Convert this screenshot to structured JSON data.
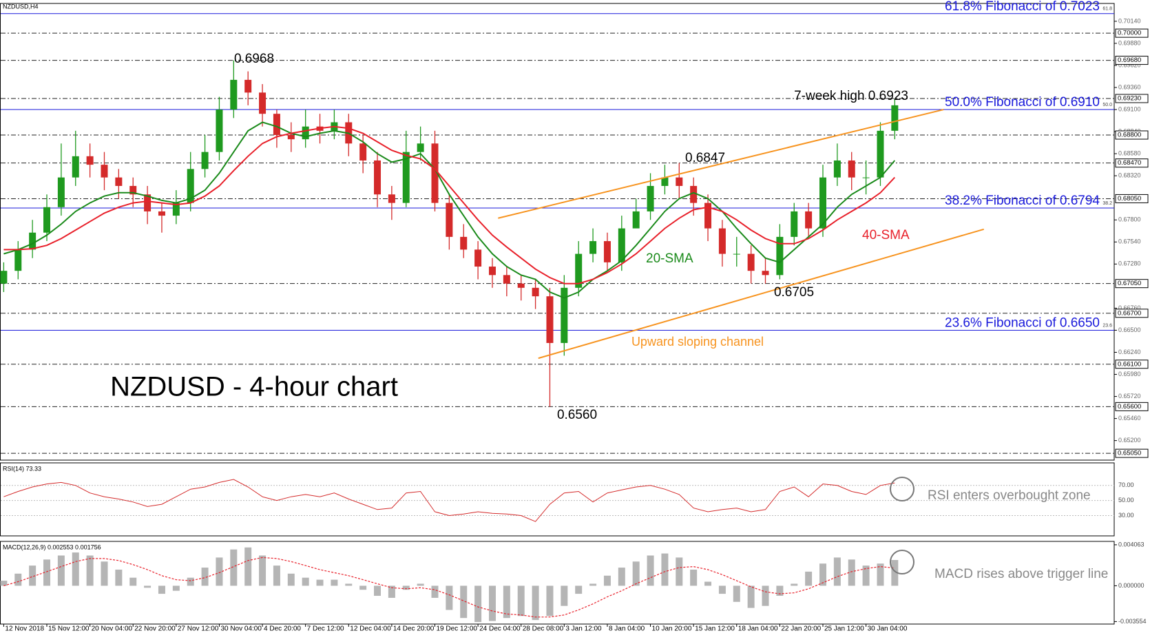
{
  "chart_data": {
    "type": "candlestick",
    "title": "NZDUSD - 4-hour chart",
    "symbol": "NZDUSD,H4",
    "categories": [
      "12 Nov 2018",
      null,
      null,
      "15 Nov 12:00",
      null,
      null,
      "20 Nov 04:00",
      null,
      null,
      "22 Nov 20:00",
      null,
      null,
      "27 Nov 12:00",
      null,
      null,
      "30 Nov 04:00",
      null,
      null,
      "4 Dec 20:00",
      null,
      null,
      "7 Dec 12:00",
      null,
      null,
      "12 Dec 04:00",
      null,
      null,
      "14 Dec 20:00",
      null,
      null,
      "19 Dec 12:00",
      null,
      null,
      "24 Dec 04:00",
      null,
      null,
      "28 Dec 08:00",
      null,
      null,
      "3 Jan 12:00",
      null,
      null,
      "8 Jan 04:00",
      null,
      null,
      "10 Jan 20:00",
      null,
      null,
      "15 Jan 12:00",
      null,
      null,
      "18 Jan 04:00",
      null,
      null,
      "22 Jan 20:00",
      null,
      null,
      "25 Jan 12:00",
      null,
      null,
      "30 Jan 04:00",
      null,
      null
    ],
    "open": [
      0.6705,
      0.672,
      0.6745,
      0.6765,
      0.6795,
      0.683,
      0.6855,
      0.6845,
      0.683,
      0.682,
      0.681,
      0.679,
      0.6785,
      0.68,
      0.684,
      0.686,
      0.691,
      0.6945,
      0.693,
      0.6905,
      0.688,
      0.6875,
      0.689,
      0.6885,
      0.6895,
      0.687,
      0.685,
      0.681,
      0.68,
      0.686,
      0.687,
      0.68,
      0.676,
      0.6745,
      0.6725,
      0.6715,
      0.6705,
      0.67,
      0.669,
      0.6635,
      0.67,
      0.674,
      0.6755,
      0.673,
      0.677,
      0.679,
      0.682,
      0.683,
      0.682,
      0.68,
      0.677,
      0.674,
      0.674,
      0.672,
      0.6715,
      0.676,
      0.679,
      0.677,
      0.683,
      0.685,
      0.683,
      0.683,
      0.6885
    ],
    "high": [
      0.673,
      0.6755,
      0.678,
      0.681,
      0.687,
      0.6885,
      0.687,
      0.686,
      0.684,
      0.683,
      0.682,
      0.68,
      0.6815,
      0.686,
      0.688,
      0.6925,
      0.6968,
      0.6955,
      0.694,
      0.691,
      0.6895,
      0.691,
      0.6905,
      0.691,
      0.6905,
      0.688,
      0.686,
      0.682,
      0.6885,
      0.689,
      0.6885,
      0.681,
      0.6775,
      0.6755,
      0.6735,
      0.6725,
      0.6715,
      0.671,
      0.67,
      0.6715,
      0.6755,
      0.677,
      0.6765,
      0.6785,
      0.6805,
      0.6835,
      0.6845,
      0.6847,
      0.683,
      0.681,
      0.678,
      0.676,
      0.675,
      0.6735,
      0.6775,
      0.68,
      0.68,
      0.6845,
      0.687,
      0.686,
      0.685,
      0.6895,
      0.6923
    ],
    "low": [
      0.6695,
      0.671,
      0.6735,
      0.6755,
      0.6785,
      0.682,
      0.683,
      0.6815,
      0.6805,
      0.6795,
      0.6775,
      0.6765,
      0.6775,
      0.679,
      0.683,
      0.685,
      0.69,
      0.6915,
      0.689,
      0.6865,
      0.686,
      0.6865,
      0.687,
      0.6875,
      0.6855,
      0.6835,
      0.6795,
      0.678,
      0.6795,
      0.685,
      0.679,
      0.6745,
      0.6735,
      0.671,
      0.67,
      0.669,
      0.6685,
      0.6675,
      0.656,
      0.662,
      0.669,
      0.673,
      0.672,
      0.672,
      0.6775,
      0.678,
      0.681,
      0.6805,
      0.6785,
      0.6755,
      0.6725,
      0.6725,
      0.6705,
      0.6705,
      0.671,
      0.675,
      0.676,
      0.676,
      0.682,
      0.6815,
      0.681,
      0.682,
      0.6875
    ],
    "close": [
      0.672,
      0.6745,
      0.6765,
      0.6795,
      0.683,
      0.6855,
      0.6845,
      0.683,
      0.682,
      0.681,
      0.679,
      0.6785,
      0.68,
      0.684,
      0.686,
      0.691,
      0.6945,
      0.693,
      0.6905,
      0.688,
      0.6875,
      0.689,
      0.6885,
      0.6895,
      0.687,
      0.685,
      0.681,
      0.68,
      0.686,
      0.687,
      0.68,
      0.676,
      0.6745,
      0.6725,
      0.6715,
      0.6705,
      0.67,
      0.669,
      0.6635,
      0.67,
      0.674,
      0.6755,
      0.673,
      0.677,
      0.679,
      0.682,
      0.683,
      0.682,
      0.68,
      0.677,
      0.674,
      0.674,
      0.672,
      0.6715,
      0.676,
      0.679,
      0.677,
      0.683,
      0.685,
      0.683,
      0.683,
      0.6885,
      0.6915
    ],
    "up_color": "#1f9a1f",
    "down_color": "#d42a2a",
    "series": [
      {
        "name": "20-SMA",
        "color": "#1a8a1a",
        "values": [
          0.674,
          0.6745,
          0.6752,
          0.6762,
          0.6775,
          0.679,
          0.68,
          0.6808,
          0.6812,
          0.6812,
          0.6808,
          0.6803,
          0.68,
          0.6805,
          0.6815,
          0.6835,
          0.686,
          0.6885,
          0.6895,
          0.689,
          0.6882,
          0.6878,
          0.6882,
          0.6885,
          0.6882,
          0.6872,
          0.6858,
          0.6848,
          0.6852,
          0.6858,
          0.684,
          0.681,
          0.6785,
          0.676,
          0.674,
          0.6725,
          0.6715,
          0.671,
          0.6695,
          0.6688,
          0.6695,
          0.671,
          0.672,
          0.6732,
          0.675,
          0.677,
          0.679,
          0.6805,
          0.6812,
          0.6805,
          0.679,
          0.677,
          0.6752,
          0.6735,
          0.673,
          0.6745,
          0.676,
          0.6775,
          0.6795,
          0.681,
          0.682,
          0.683,
          0.685
        ]
      },
      {
        "name": "40-SMA",
        "color": "#e8202a",
        "values": [
          0.6745,
          0.6745,
          0.6746,
          0.675,
          0.6758,
          0.6768,
          0.6778,
          0.6788,
          0.6795,
          0.68,
          0.6802,
          0.68,
          0.6798,
          0.68,
          0.6808,
          0.682,
          0.6838,
          0.6855,
          0.687,
          0.6878,
          0.6882,
          0.6885,
          0.6888,
          0.689,
          0.6888,
          0.6882,
          0.6872,
          0.6862,
          0.6856,
          0.6852,
          0.684,
          0.682,
          0.68,
          0.678,
          0.6762,
          0.6748,
          0.6735,
          0.6722,
          0.6712,
          0.6705,
          0.6705,
          0.671,
          0.6718,
          0.6728,
          0.674,
          0.6755,
          0.677,
          0.6782,
          0.6792,
          0.6795,
          0.679,
          0.678,
          0.6768,
          0.6758,
          0.6752,
          0.6752,
          0.6758,
          0.6768,
          0.678,
          0.679,
          0.68,
          0.6812,
          0.683
        ]
      }
    ],
    "ylim": [
      0.6497,
      0.7035
    ],
    "yticks": [
      {
        "value": 0.7014,
        "label": "0.70140"
      },
      {
        "value": 0.6988,
        "label": "0.69880"
      },
      {
        "value": 0.6962,
        "label": "0.69620"
      },
      {
        "value": 0.6936,
        "label": "0.69360"
      },
      {
        "value": 0.691,
        "label": "0.69100"
      },
      {
        "value": 0.6884,
        "label": "0.68840"
      },
      {
        "value": 0.6858,
        "label": "0.68580"
      },
      {
        "value": 0.6832,
        "label": "0.68320"
      },
      {
        "value": 0.678,
        "label": "0.67800"
      },
      {
        "value": 0.6754,
        "label": "0.67540"
      },
      {
        "value": 0.6728,
        "label": "0.67280"
      },
      {
        "value": 0.6676,
        "label": "0.66760"
      },
      {
        "value": 0.665,
        "label": "0.66500"
      },
      {
        "value": 0.6624,
        "label": "0.66240"
      },
      {
        "value": 0.6598,
        "label": "0.65980"
      },
      {
        "value": 0.6572,
        "label": "0.65720"
      },
      {
        "value": 0.6546,
        "label": "0.65460"
      },
      {
        "value": 0.652,
        "label": "0.65200"
      }
    ],
    "levels": [
      {
        "value": 0.7,
        "label": "0.70000"
      },
      {
        "value": 0.6968,
        "label": "0.69680"
      },
      {
        "value": 0.6923,
        "label": "0.69230"
      },
      {
        "value": 0.688,
        "label": "0.68800"
      },
      {
        "value": 0.6847,
        "label": "0.68470"
      },
      {
        "value": 0.6805,
        "label": "0.68050"
      },
      {
        "value": 0.6705,
        "label": "0.67050"
      },
      {
        "value": 0.667,
        "label": "0.66700"
      },
      {
        "value": 0.661,
        "label": "0.66100"
      },
      {
        "value": 0.656,
        "label": "0.65600"
      },
      {
        "value": 0.6505,
        "label": "0.65050"
      }
    ],
    "fibonacci": [
      {
        "value": 0.7023,
        "label": "61.8% Fibonacci of 0.7023",
        "tag": "61.8"
      },
      {
        "value": 0.691,
        "label": "50.0% Fibonacci of 0.6910",
        "tag": "50.0"
      },
      {
        "value": 0.6794,
        "label": "38.2% Fibonacci of 0.6794",
        "tag": "38.2"
      },
      {
        "value": 0.665,
        "label": "23.6% Fibonacci of 0.6650",
        "tag": "23.6"
      }
    ],
    "fib_color": "#1a1adb",
    "channel": {
      "label": "Upward sloping channel",
      "color": "#f7931e",
      "upper": {
        "x": [
          34.4,
          65.4
        ],
        "y": [
          0.6782,
          0.691
        ]
      },
      "lower": {
        "x": [
          37.2,
          68.2
        ],
        "y": [
          0.6617,
          0.6769
        ]
      }
    },
    "annotations": [
      "0.6968",
      "7-week high 0.6923",
      "0.6847",
      "0.6705",
      "0.6560"
    ],
    "rsi": {
      "title": "RSI(14) 73.33",
      "color": "#d42a2a",
      "ylim": [
        3,
        100
      ],
      "yticks": [
        {
          "value": 70,
          "label": "70.00"
        },
        {
          "value": 50,
          "label": "50.00"
        },
        {
          "value": 30,
          "label": "30.00"
        }
      ],
      "note": "RSI enters overbought zone",
      "values": [
        55,
        62,
        68,
        72,
        74,
        70,
        60,
        55,
        52,
        48,
        42,
        45,
        55,
        65,
        68,
        74,
        78,
        68,
        55,
        50,
        55,
        58,
        55,
        60,
        52,
        45,
        38,
        40,
        60,
        62,
        35,
        30,
        32,
        35,
        33,
        32,
        30,
        22,
        45,
        60,
        62,
        48,
        60,
        64,
        68,
        70,
        65,
        58,
        40,
        35,
        38,
        40,
        35,
        38,
        62,
        68,
        55,
        72,
        70,
        62,
        58,
        70,
        73.33
      ]
    },
    "macd": {
      "title": "MACD(12,26,9) 0.002553 0.001756",
      "hist_color": "#b5b5b5",
      "signal_color": "#e8202a",
      "ylim": [
        -0.0038,
        0.0044
      ],
      "yticks": [
        {
          "value": 0.004063,
          "label": "0.004063"
        },
        {
          "value": 0,
          "label": "0.000000"
        },
        {
          "value": -0.003554,
          "label": "-0.003554"
        }
      ],
      "note": "MACD rises above trigger line",
      "histogram": [
        0.0005,
        0.0012,
        0.002,
        0.0026,
        0.003,
        0.0033,
        0.003,
        0.0024,
        0.0016,
        0.0008,
        -0.0002,
        -0.0008,
        -0.0005,
        0.0008,
        0.0018,
        0.0028,
        0.0036,
        0.0038,
        0.003,
        0.002,
        0.0012,
        0.0008,
        0.0006,
        0.0006,
        0.0002,
        -0.0004,
        -0.001,
        -0.0012,
        -0.0004,
        0.0002,
        -0.0012,
        -0.0024,
        -0.0032,
        -0.0036,
        -0.0035,
        -0.0032,
        -0.003,
        -0.0034,
        -0.003,
        -0.002,
        -0.0008,
        0.0002,
        0.001,
        0.0018,
        0.0024,
        0.003,
        0.0032,
        0.0028,
        0.0016,
        0.0004,
        -0.0008,
        -0.0016,
        -0.0022,
        -0.002,
        -0.001,
        0.0002,
        0.0014,
        0.0022,
        0.0028,
        0.0026,
        0.002,
        0.0022,
        0.002553
      ],
      "signal": [
        0.0,
        0.0004,
        0.0009,
        0.0014,
        0.0019,
        0.0024,
        0.0027,
        0.0027,
        0.0025,
        0.0021,
        0.0016,
        0.001,
        0.0006,
        0.0005,
        0.0008,
        0.0013,
        0.0019,
        0.0025,
        0.0028,
        0.0027,
        0.0024,
        0.002,
        0.0016,
        0.0013,
        0.001,
        0.0006,
        0.0002,
        -0.0002,
        -0.0003,
        -0.0002,
        -0.0004,
        -0.0009,
        -0.0015,
        -0.0021,
        -0.0025,
        -0.0028,
        -0.0029,
        -0.0031,
        -0.0031,
        -0.0029,
        -0.0024,
        -0.0018,
        -0.0011,
        -0.0005,
        0.0002,
        0.0008,
        0.0014,
        0.0018,
        0.0019,
        0.0016,
        0.0011,
        0.0005,
        -0.0001,
        -0.0006,
        -0.0008,
        -0.0007,
        -0.0003,
        0.0003,
        0.0009,
        0.0014,
        0.0017,
        0.0019,
        0.001756
      ]
    }
  }
}
